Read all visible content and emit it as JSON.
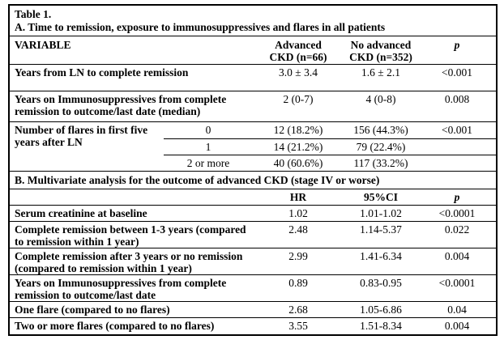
{
  "colors": {
    "background": "#ffffff",
    "text": "#000000",
    "border": "#000000"
  },
  "table": {
    "title": "Table 1.",
    "section_a": {
      "caption": "A. Time to remission, exposure to immunosuppressives and flares in all patients",
      "headers": {
        "variable": "VARIABLE",
        "advanced": "Advanced\nCKD (n=66)",
        "no_advanced": "No advanced\nCKD (n=352)",
        "p": "p"
      },
      "rows": [
        {
          "label": "Years from LN to complete remission",
          "advanced": "3.0 ± 3.4",
          "no_advanced": "1.6 ± 2.1",
          "p": "<0.001"
        },
        {
          "label": "Years on Immunosuppressives from complete remission to outcome/last date (median)",
          "advanced": "2 (0-7)",
          "no_advanced": "4 (0-8)",
          "p": "0.008"
        }
      ],
      "flares": {
        "label": "Number of flares in first five years after LN",
        "rows": [
          {
            "category": "0",
            "advanced": "12 (18.2%)",
            "no_advanced": "156 (44.3%)",
            "p": "<0.001"
          },
          {
            "category": "1",
            "advanced": "14 (21.2%)",
            "no_advanced": "79 (22.4%)",
            "p": ""
          },
          {
            "category": "2 or more",
            "advanced": "40 (60.6%)",
            "no_advanced": "117 (33.2%)",
            "p": ""
          }
        ]
      }
    },
    "section_b": {
      "caption": "B. Multivariate analysis for the outcome of advanced CKD (stage IV or worse)",
      "headers": {
        "variable": "",
        "hr": "HR",
        "ci": "95%CI",
        "p": "p"
      },
      "rows": [
        {
          "label": "Serum creatinine at baseline",
          "hr": "1.02",
          "ci": "1.01-1.02",
          "p": "<0.0001"
        },
        {
          "label": "Complete remission between 1-3 years (compared to remission within 1 year)",
          "hr": "2.48",
          "ci": "1.14-5.37",
          "p": "0.022"
        },
        {
          "label": "Complete remission after 3 years or no remission (compared to remission within 1 year)",
          "hr": "2.99",
          "ci": "1.41-6.34",
          "p": "0.004"
        },
        {
          "label": "Years on Immunosuppressives from complete remission to outcome/last date",
          "hr": "0.89",
          "ci": "0.83-0.95",
          "p": "<0.0001"
        },
        {
          "label": "One flare (compared to no flares)",
          "hr": "2.68",
          "ci": "1.05-6.86",
          "p": "0.04"
        },
        {
          "label": "Two or more flares (compared to no flares)",
          "hr": "3.55",
          "ci": "1.51-8.34",
          "p": "0.004"
        }
      ]
    }
  }
}
